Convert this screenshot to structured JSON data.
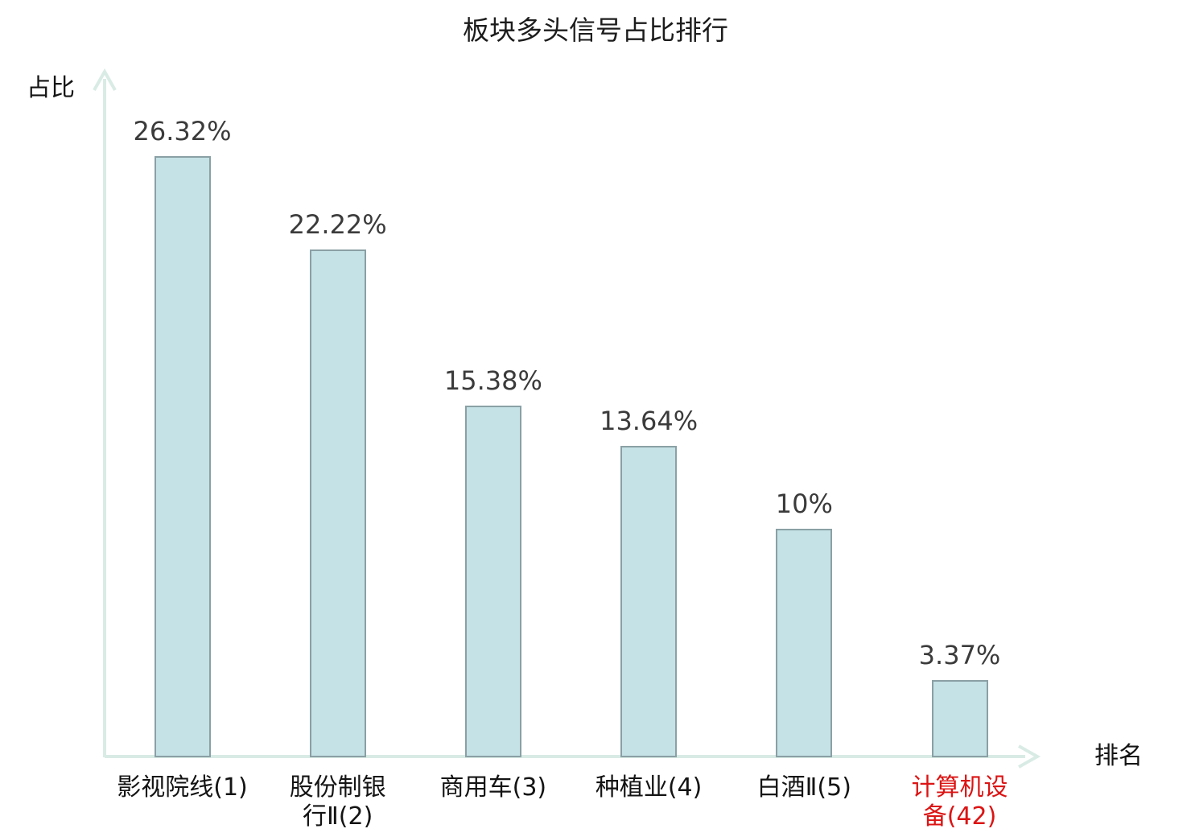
{
  "chart_data": {
    "type": "bar",
    "title": "板块多头信号占比排行",
    "xlabel": "排名",
    "ylabel": "占比",
    "categories": [
      "影视院线(1)",
      "股份制银\n行Ⅱ(2)",
      "商用车(3)",
      "种植业(4)",
      "白酒Ⅱ(5)",
      "计算机设\n备(42)"
    ],
    "values": [
      26.32,
      22.22,
      15.38,
      13.64,
      10,
      3.37
    ],
    "value_labels": [
      "26.32%",
      "22.22%",
      "15.38%",
      "13.64%",
      "10%",
      "3.37%"
    ],
    "ylim": [
      0,
      30
    ],
    "grid": false,
    "legend_position": "none",
    "highlight_index": 5,
    "colors": {
      "bar_fill": "#c5e2e6",
      "bar_border": "#8aa0a5",
      "axis": "#d9ebe5",
      "title_text": "#1c1c1c",
      "value_text": "#3b3b3b",
      "category_text": "#141414",
      "highlight_text": "#dc1414"
    }
  }
}
